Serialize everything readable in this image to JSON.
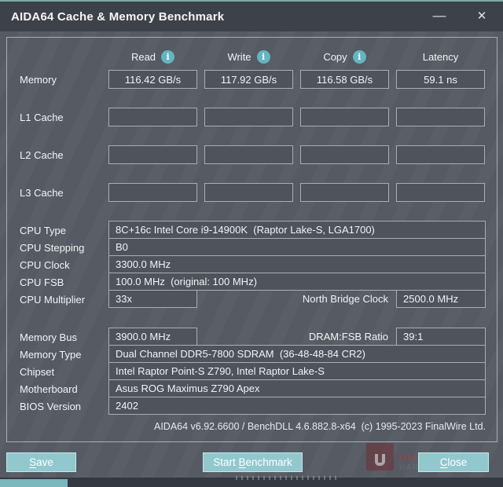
{
  "window": {
    "title": "AIDA64 Cache & Memory Benchmark",
    "minimize_glyph": "—",
    "close_glyph": "✕"
  },
  "header": {
    "info_glyph": "i",
    "columns": [
      {
        "label": "Read",
        "has_info": true
      },
      {
        "label": "Write",
        "has_info": true
      },
      {
        "label": "Copy",
        "has_info": true
      },
      {
        "label": "Latency",
        "has_info": false
      }
    ]
  },
  "benchmark": {
    "rows": [
      {
        "label": "Memory",
        "read": "116.42 GB/s",
        "write": "117.92 GB/s",
        "copy": "116.58 GB/s",
        "latency": "59.1 ns"
      },
      {
        "label": "L1 Cache",
        "read": "",
        "write": "",
        "copy": "",
        "latency": ""
      },
      {
        "label": "L2 Cache",
        "read": "",
        "write": "",
        "copy": "",
        "latency": ""
      },
      {
        "label": "L3 Cache",
        "read": "",
        "write": "",
        "copy": "",
        "latency": ""
      }
    ]
  },
  "system": {
    "cpu_type": {
      "label": "CPU Type",
      "value": "8C+16c Intel Core i9-14900K  (Raptor Lake-S, LGA1700)"
    },
    "cpu_stepping": {
      "label": "CPU Stepping",
      "value": "B0"
    },
    "cpu_clock": {
      "label": "CPU Clock",
      "value": "3300.0 MHz"
    },
    "cpu_fsb": {
      "label": "CPU FSB",
      "value": "100.0 MHz  (original: 100 MHz)"
    },
    "cpu_multiplier": {
      "label": "CPU Multiplier",
      "value": "33x",
      "right_label": "North Bridge Clock",
      "right_value": "2500.0 MHz"
    },
    "memory_bus": {
      "label": "Memory Bus",
      "value": "3900.0 MHz",
      "right_label": "DRAM:FSB Ratio",
      "right_value": "39:1"
    },
    "memory_type": {
      "label": "Memory Type",
      "value": "Dual Channel DDR5-7800 SDRAM  (36-48-48-84 CR2)"
    },
    "chipset": {
      "label": "Chipset",
      "value": "Intel Raptor Point-S Z790, Intel Raptor Lake-S"
    },
    "motherboard": {
      "label": "Motherboard",
      "value": "Asus ROG Maximus Z790 Apex"
    },
    "bios_version": {
      "label": "BIOS Version",
      "value": "2402"
    }
  },
  "footer": {
    "credit": "AIDA64 v6.92.6600 / BenchDLL 4.6.882.8-x64  (c) 1995-2023 FinalWire Ltd."
  },
  "buttons": {
    "save": {
      "pre": "",
      "key": "S",
      "post": "ave"
    },
    "start": {
      "pre": "Start ",
      "key": "B",
      "post": "enchmark"
    },
    "close": {
      "pre": "",
      "key": "C",
      "post": "lose"
    }
  },
  "watermark": {
    "line1": "UNIKO",
    "line2": "HARDWARE"
  },
  "colors": {
    "accent_teal": "#91c8ce",
    "info_icon_teal": "#64b5c2",
    "titlebar_bg": "#3d4149",
    "window_bg": "#575c65",
    "field_bg": "#4e535c",
    "field_border": "#a9aeb6",
    "watermark_red": "#c33a30"
  }
}
